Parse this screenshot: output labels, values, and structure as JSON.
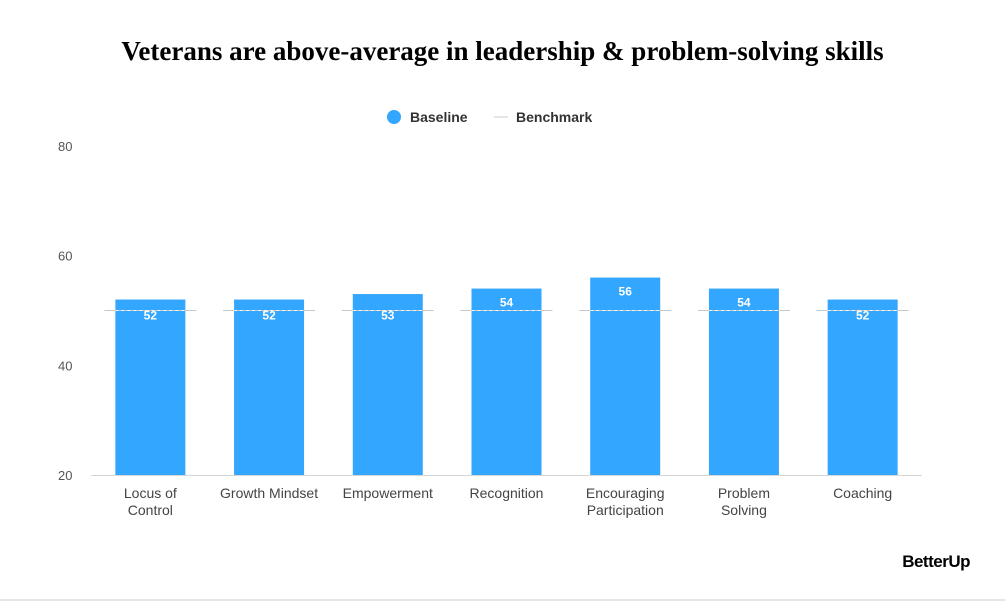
{
  "chart_data": {
    "type": "bar",
    "title": "Veterans are above-average in leadership & problem-solving skills",
    "categories": [
      [
        "Locus of",
        "Control"
      ],
      [
        "Growth Mindset"
      ],
      [
        "Empowerment"
      ],
      [
        "Recognition"
      ],
      [
        "Encouraging",
        "Participation"
      ],
      [
        "Problem",
        "Solving"
      ],
      [
        "Coaching"
      ]
    ],
    "series": [
      {
        "name": "Baseline",
        "values": [
          52,
          52,
          53,
          54,
          56,
          54,
          52
        ],
        "color": "#33a6ff"
      }
    ],
    "benchmark": {
      "name": "Benchmark",
      "value": 50,
      "color": "#c8c8c8"
    },
    "yticks": [
      20,
      40,
      60,
      80
    ],
    "ylim": [
      20,
      80
    ],
    "grid": false,
    "legend_position": "top-center",
    "xlabel": "",
    "ylabel": ""
  },
  "brand": "BetterUp"
}
